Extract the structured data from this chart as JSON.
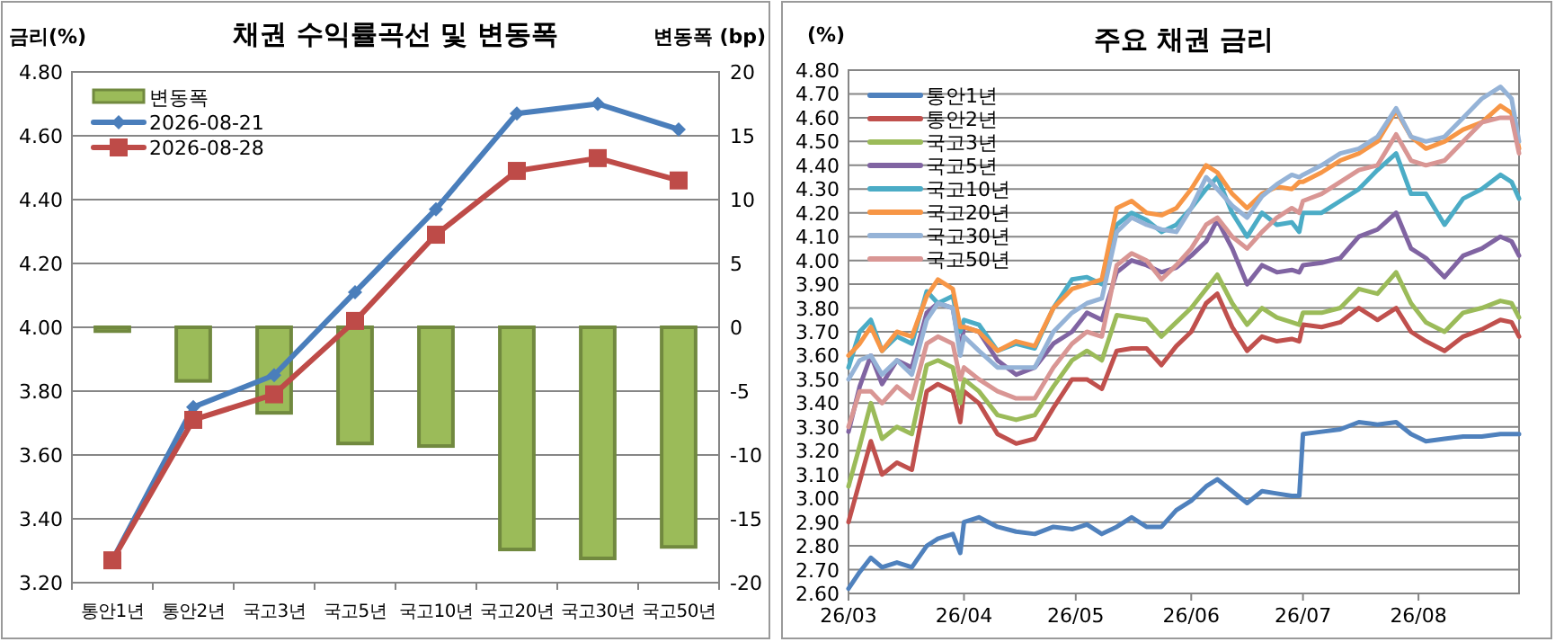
{
  "chart_data": [
    {
      "type": "line",
      "title": "채권 수익률곡선 및 변동폭",
      "ylabel": "금리(%)",
      "y2label": "변동폭 (bp)",
      "categories": [
        "통안1년",
        "통안2년",
        "국고3년",
        "국고5년",
        "국고10년",
        "국고20년",
        "국고30년",
        "국고50년"
      ],
      "series": [
        {
          "name": "변동폭",
          "type": "bar",
          "axis": "y2",
          "color": "#9bbb59",
          "values": [
            -0.3,
            -4.2,
            -6.7,
            -9.1,
            -9.3,
            -17.4,
            -18.1,
            -17.2
          ]
        },
        {
          "name": "2026-08-21",
          "type": "line",
          "marker": "diamond",
          "color": "#4a7ebb",
          "values": [
            3.27,
            3.75,
            3.85,
            4.11,
            4.37,
            4.67,
            4.7,
            4.62
          ]
        },
        {
          "name": "2026-08-28",
          "type": "line",
          "marker": "square",
          "color": "#be4b48",
          "values": [
            3.27,
            3.71,
            3.79,
            4.02,
            4.29,
            4.49,
            4.53,
            4.46
          ]
        }
      ],
      "ylim": [
        3.2,
        4.8
      ],
      "yticks": [
        {
          "value": 3.2,
          "label": "3.20"
        },
        {
          "value": 3.4,
          "label": "3.40"
        },
        {
          "value": 3.6,
          "label": "3.60"
        },
        {
          "value": 3.8,
          "label": "3.80"
        },
        {
          "value": 4.0,
          "label": "4.00"
        },
        {
          "value": 4.2,
          "label": "4.20"
        },
        {
          "value": 4.4,
          "label": "4.40"
        },
        {
          "value": 4.6,
          "label": "4.60"
        },
        {
          "value": 4.8,
          "label": "4.80"
        }
      ],
      "y2lim": [
        -20,
        20
      ],
      "y2ticks": [
        -20,
        -15,
        -10,
        -5,
        0,
        5,
        10,
        15,
        20
      ],
      "grid": "y",
      "legend": "top left"
    },
    {
      "type": "line",
      "title": "주요 채권 금리",
      "ylabel": "(%)",
      "x": [
        "2026-03-01",
        "2026-03-04",
        "2026-03-07",
        "2026-03-10",
        "2026-03-14",
        "2026-03-18",
        "2026-03-22",
        "2026-03-25",
        "2026-03-29",
        "2026-03-31",
        "2026-04-01",
        "2026-04-05",
        "2026-04-10",
        "2026-04-15",
        "2026-04-20",
        "2026-04-25",
        "2026-04-30",
        "2026-05-04",
        "2026-05-08",
        "2026-05-12",
        "2026-05-16",
        "2026-05-20",
        "2026-05-24",
        "2026-05-28",
        "2026-06-01",
        "2026-06-05",
        "2026-06-08",
        "2026-06-12",
        "2026-06-16",
        "2026-06-20",
        "2026-06-24",
        "2026-06-28",
        "2026-06-30",
        "2026-07-01",
        "2026-07-06",
        "2026-07-11",
        "2026-07-16",
        "2026-07-21",
        "2026-07-26",
        "2026-07-30",
        "2026-08-03",
        "2026-08-08",
        "2026-08-13",
        "2026-08-18",
        "2026-08-23",
        "2026-08-26",
        "2026-08-28"
      ],
      "series": [
        {
          "name": "통안1년",
          "color": "#4f81bd",
          "values": [
            2.62,
            2.69,
            2.75,
            2.71,
            2.73,
            2.71,
            2.8,
            2.83,
            2.85,
            2.77,
            2.9,
            2.92,
            2.88,
            2.86,
            2.85,
            2.88,
            2.87,
            2.89,
            2.85,
            2.88,
            2.92,
            2.88,
            2.88,
            2.95,
            2.99,
            3.05,
            3.08,
            3.03,
            2.98,
            3.03,
            3.02,
            3.01,
            3.01,
            3.27,
            3.28,
            3.29,
            3.32,
            3.31,
            3.32,
            3.27,
            3.24,
            3.25,
            3.26,
            3.26,
            3.27,
            3.27,
            3.27
          ]
        },
        {
          "name": "통안2년",
          "color": "#c0504d",
          "values": [
            2.9,
            3.07,
            3.24,
            3.1,
            3.15,
            3.12,
            3.45,
            3.48,
            3.45,
            3.32,
            3.45,
            3.4,
            3.27,
            3.23,
            3.25,
            3.38,
            3.5,
            3.5,
            3.46,
            3.62,
            3.63,
            3.63,
            3.56,
            3.64,
            3.7,
            3.82,
            3.86,
            3.72,
            3.62,
            3.68,
            3.66,
            3.67,
            3.66,
            3.73,
            3.72,
            3.74,
            3.8,
            3.75,
            3.8,
            3.7,
            3.66,
            3.62,
            3.68,
            3.71,
            3.75,
            3.74,
            3.68
          ]
        },
        {
          "name": "국고3년",
          "color": "#9bbb59",
          "values": [
            3.05,
            3.22,
            3.4,
            3.25,
            3.3,
            3.27,
            3.56,
            3.58,
            3.55,
            3.4,
            3.5,
            3.45,
            3.35,
            3.33,
            3.35,
            3.47,
            3.58,
            3.62,
            3.58,
            3.77,
            3.76,
            3.75,
            3.68,
            3.74,
            3.8,
            3.88,
            3.94,
            3.82,
            3.73,
            3.8,
            3.76,
            3.74,
            3.73,
            3.78,
            3.78,
            3.8,
            3.88,
            3.86,
            3.95,
            3.82,
            3.74,
            3.7,
            3.78,
            3.8,
            3.83,
            3.82,
            3.76
          ]
        },
        {
          "name": "국고5년",
          "color": "#8064a2",
          "values": [
            3.28,
            3.47,
            3.6,
            3.48,
            3.58,
            3.55,
            3.78,
            3.82,
            3.8,
            3.62,
            3.72,
            3.7,
            3.58,
            3.52,
            3.55,
            3.65,
            3.7,
            3.78,
            3.75,
            3.95,
            4.0,
            3.98,
            3.95,
            3.97,
            4.02,
            4.08,
            4.17,
            4.05,
            3.9,
            3.98,
            3.95,
            3.96,
            3.95,
            3.98,
            3.99,
            4.01,
            4.1,
            4.13,
            4.2,
            4.05,
            4.01,
            3.93,
            4.02,
            4.05,
            4.1,
            4.08,
            4.02
          ]
        },
        {
          "name": "국고10년",
          "color": "#4bacc6",
          "values": [
            3.55,
            3.7,
            3.75,
            3.62,
            3.68,
            3.65,
            3.87,
            3.82,
            3.85,
            3.7,
            3.75,
            3.73,
            3.62,
            3.65,
            3.63,
            3.8,
            3.92,
            3.93,
            3.9,
            4.15,
            4.2,
            4.17,
            4.12,
            4.15,
            4.22,
            4.3,
            4.35,
            4.2,
            4.1,
            4.2,
            4.15,
            4.16,
            4.12,
            4.2,
            4.2,
            4.25,
            4.3,
            4.38,
            4.45,
            4.28,
            4.28,
            4.15,
            4.26,
            4.3,
            4.36,
            4.33,
            4.26
          ]
        },
        {
          "name": "국고20년",
          "color": "#f79646",
          "values": [
            3.6,
            3.65,
            3.72,
            3.62,
            3.7,
            3.68,
            3.85,
            3.92,
            3.88,
            3.72,
            3.72,
            3.7,
            3.62,
            3.66,
            3.64,
            3.8,
            3.88,
            3.9,
            3.92,
            4.22,
            4.25,
            4.2,
            4.19,
            4.22,
            4.3,
            4.4,
            4.37,
            4.28,
            4.22,
            4.28,
            4.31,
            4.3,
            4.33,
            4.33,
            4.37,
            4.42,
            4.45,
            4.5,
            4.63,
            4.52,
            4.47,
            4.5,
            4.55,
            4.58,
            4.65,
            4.62,
            4.47
          ]
        },
        {
          "name": "국고30년",
          "color": "#95b3d7",
          "values": [
            3.5,
            3.58,
            3.6,
            3.52,
            3.58,
            3.52,
            3.75,
            3.82,
            3.8,
            3.6,
            3.68,
            3.62,
            3.55,
            3.55,
            3.55,
            3.7,
            3.78,
            3.82,
            3.84,
            4.12,
            4.18,
            4.15,
            4.13,
            4.12,
            4.22,
            4.35,
            4.3,
            4.23,
            4.18,
            4.27,
            4.32,
            4.36,
            4.35,
            4.36,
            4.4,
            4.45,
            4.47,
            4.52,
            4.64,
            4.52,
            4.5,
            4.52,
            4.6,
            4.68,
            4.73,
            4.68,
            4.5
          ]
        },
        {
          "name": "국고50년",
          "color": "#d99694",
          "values": [
            3.3,
            3.45,
            3.45,
            3.4,
            3.47,
            3.42,
            3.65,
            3.68,
            3.65,
            3.5,
            3.55,
            3.5,
            3.45,
            3.42,
            3.42,
            3.55,
            3.65,
            3.7,
            3.68,
            3.98,
            4.03,
            4.0,
            3.92,
            3.98,
            4.05,
            4.15,
            4.18,
            4.1,
            4.05,
            4.12,
            4.18,
            4.22,
            4.2,
            4.25,
            4.28,
            4.33,
            4.38,
            4.4,
            4.53,
            4.42,
            4.4,
            4.42,
            4.5,
            4.58,
            4.6,
            4.6,
            4.45
          ]
        }
      ],
      "xlim": [
        "2026-03-01",
        "2026-08-28"
      ],
      "xticks": [
        {
          "value": "2026-03-01",
          "label": "26/03"
        },
        {
          "value": "2026-04-01",
          "label": "26/04"
        },
        {
          "value": "2026-05-01",
          "label": "26/05"
        },
        {
          "value": "2026-06-01",
          "label": "26/06"
        },
        {
          "value": "2026-07-01",
          "label": "26/07"
        },
        {
          "value": "2026-08-01",
          "label": "26/08"
        }
      ],
      "ylim": [
        2.6,
        4.8
      ],
      "yticks": [
        {
          "value": 2.6,
          "label": "2.60"
        },
        {
          "value": 2.7,
          "label": "2.70"
        },
        {
          "value": 2.8,
          "label": "2.80"
        },
        {
          "value": 2.9,
          "label": "2.90"
        },
        {
          "value": 3.0,
          "label": "3.00"
        },
        {
          "value": 3.1,
          "label": "3.10"
        },
        {
          "value": 3.2,
          "label": "3.20"
        },
        {
          "value": 3.3,
          "label": "3.30"
        },
        {
          "value": 3.4,
          "label": "3.40"
        },
        {
          "value": 3.5,
          "label": "3.50"
        },
        {
          "value": 3.6,
          "label": "3.60"
        },
        {
          "value": 3.7,
          "label": "3.70"
        },
        {
          "value": 3.8,
          "label": "3.80"
        },
        {
          "value": 3.9,
          "label": "3.90"
        },
        {
          "value": 4.0,
          "label": "4.00"
        },
        {
          "value": 4.1,
          "label": "4.10"
        },
        {
          "value": 4.2,
          "label": "4.20"
        },
        {
          "value": 4.3,
          "label": "4.30"
        },
        {
          "value": 4.4,
          "label": "4.40"
        },
        {
          "value": 4.5,
          "label": "4.50"
        },
        {
          "value": 4.6,
          "label": "4.60"
        },
        {
          "value": 4.7,
          "label": "4.70"
        },
        {
          "value": 4.8,
          "label": "4.80"
        }
      ],
      "grid": "y",
      "legend": "top left"
    }
  ]
}
